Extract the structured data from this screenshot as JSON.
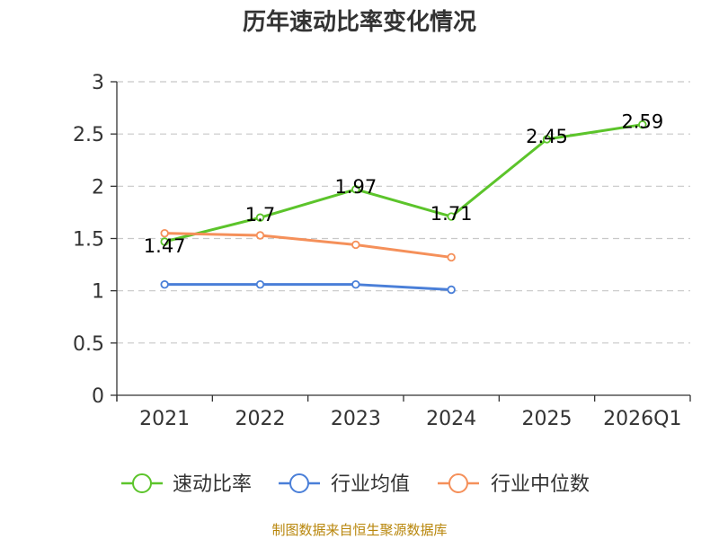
{
  "chart_data": {
    "type": "line",
    "title": "历年速动比率变化情况",
    "categories": [
      "2021",
      "2022",
      "2023",
      "2024",
      "2025",
      "2026Q1"
    ],
    "ylim": [
      0,
      3
    ],
    "yticks": [
      "0",
      "0.5",
      "1",
      "1.5",
      "2",
      "2.5",
      "3"
    ],
    "grid": true,
    "legend_position": "bottom",
    "series": [
      {
        "name": "速动比率",
        "color": "#5cc42b",
        "values": [
          1.47,
          1.7,
          1.97,
          1.71,
          2.45,
          2.59
        ],
        "labels": [
          "1.47",
          "1.7",
          "1.97",
          "1.71",
          "2.45",
          "2.59"
        ]
      },
      {
        "name": "行业均值",
        "color": "#4a7fd8",
        "values": [
          1.06,
          1.06,
          1.06,
          1.01,
          null,
          null
        ]
      },
      {
        "name": "行业中位数",
        "color": "#f5905a",
        "values": [
          1.55,
          1.53,
          1.44,
          1.32,
          null,
          null
        ]
      }
    ],
    "source": "制图数据来自恒生聚源数据库"
  }
}
